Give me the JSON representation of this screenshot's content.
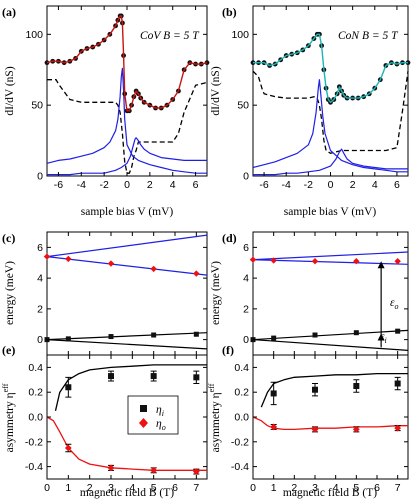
{
  "colors": {
    "exp_a": "#c8140f",
    "exp_b": "#1ab5b5",
    "data_point": "#111111",
    "blue": "#1f1fe6",
    "red": "#ee1111",
    "black": "#000000"
  },
  "labels": {
    "sample_bias": "sample bias V (mV)",
    "didv": "dI/dV (nS)",
    "energy": "energy (meV)",
    "asymmetry": "asymmetry η",
    "asymmetry_sup": "eff",
    "magnetic_field": "magnetic field B (T)",
    "eta_i": "η",
    "eta_i_sub": "i",
    "eta_o": "η",
    "eta_o_sub": "o",
    "eps_o": "ε",
    "eps_o_sub": "o",
    "eps_i": "ε",
    "eps_i_sub": "i"
  },
  "panels": {
    "a": {
      "letter": "(a)",
      "title": "CoV B = 5 T"
    },
    "b": {
      "letter": "(b)",
      "title": "CoN B = 5 T"
    },
    "c": {
      "letter": "(c)"
    },
    "d": {
      "letter": "(d)"
    },
    "e": {
      "letter": "(e)"
    },
    "f": {
      "letter": "(f)"
    }
  },
  "ticks": {
    "bias": [
      "-6",
      "-4",
      "-2",
      "0",
      "2",
      "4",
      "6"
    ],
    "didv": [
      "0",
      "50",
      "100"
    ],
    "energy": [
      "0",
      "2",
      "4",
      "6"
    ],
    "asym": [
      "-0.4",
      "-0.2",
      "0.0",
      "0.2",
      "0.4"
    ],
    "field": [
      "0",
      "1",
      "2",
      "3",
      "4",
      "5",
      "6",
      "7"
    ]
  },
  "chart_data": [
    {
      "id": "a",
      "type": "line",
      "title": "CoV B = 5 T",
      "xlabel": "sample bias V (mV)",
      "ylabel": "dI/dV (nS)",
      "xlim": [
        -7,
        7
      ],
      "ylim": [
        0,
        120
      ],
      "series": [
        {
          "role": "experiment",
          "x": [
            -7,
            -6.5,
            -6,
            -5.5,
            -5,
            -4.5,
            -4,
            -3.5,
            -3,
            -2.5,
            -2,
            -1.5,
            -1,
            -0.8,
            -0.6,
            -0.5,
            -0.4,
            -0.3,
            -0.2,
            0,
            0.2,
            0.4,
            0.6,
            0.8,
            1,
            1.2,
            1.5,
            2,
            2.5,
            3,
            3.5,
            4,
            4.5,
            5,
            5.5,
            6,
            6.5,
            7
          ],
          "y": [
            80,
            81,
            81,
            80,
            81,
            83,
            88,
            90,
            91,
            93,
            96,
            100,
            106,
            110,
            113,
            113,
            108,
            85,
            58,
            46,
            46,
            50,
            56,
            60,
            58,
            55,
            52,
            50,
            48,
            48,
            50,
            54,
            60,
            75,
            80,
            79,
            79,
            80
          ]
        },
        {
          "role": "simulation_dashed",
          "x": [
            -7,
            -6.2,
            -6,
            -5,
            -4,
            -3,
            -2,
            -1.5,
            -1,
            -0.8,
            -0.6,
            -0.4,
            -0.2,
            0,
            0.2,
            0.4,
            0.6,
            0.8,
            1,
            1.5,
            2,
            3,
            4,
            4.5,
            5,
            6,
            7
          ],
          "y": [
            68,
            68,
            65,
            54,
            52,
            52,
            52,
            52,
            52,
            50,
            45,
            30,
            10,
            2,
            2,
            6,
            14,
            18,
            24,
            24,
            24,
            24,
            24,
            30,
            45,
            64,
            66
          ]
        },
        {
          "role": "blue_peak",
          "x": [
            -7,
            -6,
            -5,
            -4,
            -3,
            -2,
            -1.5,
            -1,
            -0.8,
            -0.6,
            -0.5,
            -0.4,
            -0.3,
            -0.2,
            0,
            0.5,
            1,
            2,
            3,
            4,
            5,
            6,
            7
          ],
          "y": [
            9,
            11,
            12,
            14,
            16,
            20,
            24,
            32,
            40,
            56,
            70,
            76,
            60,
            40,
            22,
            14,
            11,
            8,
            6,
            4,
            3,
            2,
            2
          ]
        },
        {
          "role": "blue_secondary",
          "x": [
            -7,
            -6,
            -5,
            -4,
            -3,
            -2,
            -1,
            -0.5,
            0,
            0.3,
            0.5,
            0.7,
            0.8,
            1,
            1.2,
            1.5,
            2,
            3,
            4,
            5,
            6,
            7
          ],
          "y": [
            1,
            1,
            1,
            2,
            2,
            2,
            4,
            6,
            9,
            14,
            20,
            26,
            27,
            25,
            22,
            19,
            16,
            13,
            12,
            11,
            11,
            11
          ]
        }
      ]
    },
    {
      "id": "b",
      "type": "line",
      "title": "CoN B = 5 T",
      "xlabel": "sample bias V (mV)",
      "xlim": [
        -7,
        7
      ],
      "ylim": [
        0,
        120
      ],
      "series": [
        {
          "role": "experiment",
          "x": [
            -7,
            -6.5,
            -6,
            -5.5,
            -5,
            -4.5,
            -4,
            -3.5,
            -3,
            -2.5,
            -2,
            -1.5,
            -1.2,
            -1,
            -0.8,
            -0.6,
            -0.4,
            -0.2,
            0,
            0.3,
            0.6,
            0.8,
            1,
            1.2,
            1.5,
            2,
            2.5,
            3,
            3.5,
            4,
            4.5,
            5,
            5.5,
            6,
            6.5,
            7
          ],
          "y": [
            80,
            80,
            80,
            78,
            79,
            82,
            85,
            86,
            87,
            89,
            92,
            97,
            100,
            100,
            92,
            75,
            62,
            54,
            52,
            54,
            58,
            63,
            60,
            57,
            55,
            55,
            55,
            56,
            58,
            62,
            68,
            78,
            80,
            79,
            80,
            80
          ]
        },
        {
          "role": "simulation_dashed",
          "x": [
            -7,
            -6.5,
            -6.2,
            -6,
            -5,
            -4,
            -3,
            -2,
            -1.5,
            -1.2,
            -1,
            -0.8,
            -0.6,
            -0.4,
            0,
            0.5,
            1,
            1.5,
            2,
            3,
            4,
            5,
            6,
            6.5,
            7
          ],
          "y": [
            74,
            70,
            62,
            58,
            56,
            55,
            55,
            55,
            56,
            55,
            50,
            40,
            25,
            18,
            16,
            17,
            18,
            18,
            18,
            18,
            18,
            18,
            20,
            46,
            74
          ]
        },
        {
          "role": "blue_peak",
          "x": [
            -7,
            -6,
            -5,
            -4,
            -3,
            -2,
            -1.6,
            -1.3,
            -1.1,
            -1,
            -0.9,
            -0.7,
            -0.5,
            0,
            1,
            2,
            3,
            4,
            5,
            6,
            7
          ],
          "y": [
            6,
            8,
            10,
            13,
            16,
            22,
            30,
            45,
            62,
            68,
            60,
            42,
            30,
            18,
            11,
            8,
            6,
            5,
            4,
            3,
            3
          ]
        },
        {
          "role": "blue_secondary",
          "x": [
            -7,
            -6,
            -5,
            -4,
            -3,
            -2,
            -1,
            0,
            0.5,
            0.8,
            1,
            1.2,
            1.5,
            2,
            3,
            4,
            5,
            6,
            7
          ],
          "y": [
            1,
            1,
            1,
            2,
            2,
            3,
            4,
            7,
            12,
            17,
            19,
            16,
            12,
            9,
            7,
            6,
            5,
            5,
            5
          ]
        }
      ]
    },
    {
      "id": "c",
      "type": "line",
      "ylabel": "energy (meV)",
      "xlim": [
        0,
        7.5
      ],
      "ylim": [
        -1,
        7
      ],
      "series": [
        {
          "role": "upper_blue",
          "x": [
            0,
            7.5
          ],
          "y": [
            5.4,
            6.8
          ]
        },
        {
          "role": "lower_blue",
          "x": [
            0,
            7.5
          ],
          "y": [
            5.4,
            4.2
          ]
        },
        {
          "role": "black_upper",
          "x": [
            0,
            7.5
          ],
          "y": [
            0,
            0.45
          ]
        },
        {
          "role": "black_lower",
          "x": [
            0,
            7.5
          ],
          "y": [
            0,
            -0.6
          ]
        },
        {
          "role": "red_points",
          "x": [
            0,
            1,
            3,
            5,
            7
          ],
          "y": [
            5.4,
            5.25,
            4.95,
            4.6,
            4.3
          ]
        },
        {
          "role": "black_points",
          "x": [
            0,
            1,
            3,
            5,
            7
          ],
          "y": [
            0,
            0.05,
            0.2,
            0.3,
            0.35
          ]
        }
      ]
    },
    {
      "id": "d",
      "type": "line",
      "xlim": [
        0,
        7.5
      ],
      "ylim": [
        -1,
        7
      ],
      "series": [
        {
          "role": "upper_blue",
          "x": [
            0,
            7.5
          ],
          "y": [
            5.2,
            5.7
          ]
        },
        {
          "role": "lower_blue",
          "x": [
            0,
            7.5
          ],
          "y": [
            5.2,
            4.9
          ]
        },
        {
          "role": "black_upper",
          "x": [
            0,
            7.5
          ],
          "y": [
            0,
            0.6
          ]
        },
        {
          "role": "black_lower",
          "x": [
            0,
            7.5
          ],
          "y": [
            0,
            -0.7
          ]
        },
        {
          "role": "red_points",
          "x": [
            0,
            1,
            3,
            5,
            7
          ],
          "y": [
            5.2,
            5.15,
            5.1,
            5.1,
            5.1
          ]
        },
        {
          "role": "black_points",
          "x": [
            0,
            1,
            3,
            5,
            7
          ],
          "y": [
            0,
            0.1,
            0.3,
            0.45,
            0.55
          ]
        }
      ],
      "annotations": [
        {
          "label": "ε_o",
          "x": 6.2,
          "y_from": 0.3,
          "y_to": 5.1
        },
        {
          "label": "ε_i",
          "x": 6.2,
          "y_from": -0.5,
          "y_to": 0.4
        }
      ]
    },
    {
      "id": "e",
      "type": "scatter",
      "xlabel": "magnetic field B (T)",
      "ylabel": "asymmetry η eff",
      "xlim": [
        0,
        7.5
      ],
      "ylim": [
        -0.5,
        0.5
      ],
      "legend": "center-right",
      "series": [
        {
          "name": "η_i",
          "x": [
            1,
            3,
            5,
            7
          ],
          "y": [
            0.24,
            0.33,
            0.33,
            0.32
          ],
          "err": [
            0.08,
            0.04,
            0.04,
            0.05
          ]
        },
        {
          "name": "η_o",
          "x": [
            1,
            3,
            5,
            7
          ],
          "y": [
            -0.25,
            -0.41,
            -0.43,
            -0.44
          ],
          "err": [
            0.03,
            0.02,
            0.02,
            0.02
          ]
        },
        {
          "role": "fit_black",
          "x": [
            0.4,
            0.6,
            1,
            1.5,
            2,
            3,
            4,
            5,
            6,
            7,
            7.5
          ],
          "y": [
            0.05,
            0.2,
            0.3,
            0.35,
            0.38,
            0.4,
            0.41,
            0.42,
            0.42,
            0.42,
            0.42
          ]
        },
        {
          "role": "fit_red",
          "x": [
            0,
            0.3,
            0.6,
            1,
            1.5,
            2,
            3,
            4,
            5,
            6,
            7,
            7.5
          ],
          "y": [
            0,
            -0.03,
            -0.12,
            -0.25,
            -0.34,
            -0.38,
            -0.41,
            -0.42,
            -0.43,
            -0.43,
            -0.43,
            -0.43
          ]
        }
      ]
    },
    {
      "id": "f",
      "type": "scatter",
      "xlabel": "magnetic field B (T)",
      "xlim": [
        0,
        7.5
      ],
      "ylim": [
        -0.5,
        0.5
      ],
      "series": [
        {
          "name": "η_i",
          "x": [
            1,
            3,
            5,
            7
          ],
          "y": [
            0.19,
            0.22,
            0.25,
            0.27
          ],
          "err": [
            0.09,
            0.05,
            0.05,
            0.05
          ]
        },
        {
          "name": "η_o",
          "x": [
            1,
            3,
            5,
            7
          ],
          "y": [
            -0.08,
            -0.1,
            -0.1,
            -0.09
          ],
          "err": [
            0.02,
            0.02,
            0.02,
            0.02
          ]
        },
        {
          "role": "fit_black",
          "x": [
            0.4,
            0.7,
            1,
            1.5,
            2,
            3,
            4,
            5,
            6,
            7,
            7.5
          ],
          "y": [
            0.08,
            0.2,
            0.27,
            0.3,
            0.32,
            0.33,
            0.34,
            0.34,
            0.35,
            0.35,
            0.35
          ]
        },
        {
          "role": "fit_red",
          "x": [
            0,
            0.4,
            0.7,
            1,
            1.5,
            2,
            3,
            4,
            5,
            6,
            7,
            7.5
          ],
          "y": [
            0,
            -0.03,
            -0.07,
            -0.09,
            -0.1,
            -0.1,
            -0.09,
            -0.09,
            -0.08,
            -0.08,
            -0.07,
            -0.07
          ]
        }
      ]
    }
  ]
}
